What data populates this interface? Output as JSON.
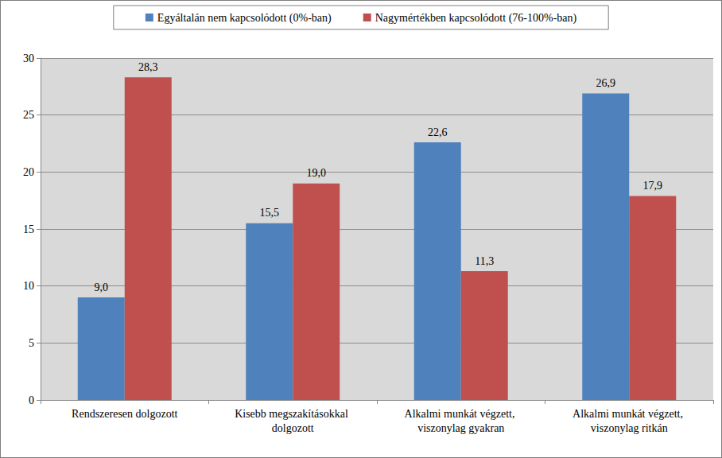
{
  "chart_data": {
    "type": "bar",
    "categories": [
      "Rendszeresen dolgozott",
      "Kisebb megszakításokkal dolgozott",
      "Alkalmi munkát végzett, viszonylag gyakran",
      "Alkalmi munkát végzett, viszonylag ritkán"
    ],
    "series": [
      {
        "name": "Egyáltalán nem kapcsolódott (0%-ban)",
        "color": "#4f81bd",
        "values": [
          9.0,
          15.5,
          22.6,
          26.9
        ],
        "value_labels": [
          "9,0",
          "15,5",
          "22,6",
          "26,9"
        ]
      },
      {
        "name": "Nagymértékben kapcsolódott (76-100%-ban)",
        "color": "#c0504d",
        "values": [
          28.3,
          19.0,
          11.3,
          17.9
        ],
        "value_labels": [
          "28,3",
          "19,0",
          "11,3",
          "17,9"
        ]
      }
    ],
    "ylim": [
      0,
      30
    ],
    "yticks": [
      0,
      5,
      10,
      15,
      20,
      25,
      30
    ],
    "grid": true,
    "legend": "top",
    "data_labels": true
  }
}
